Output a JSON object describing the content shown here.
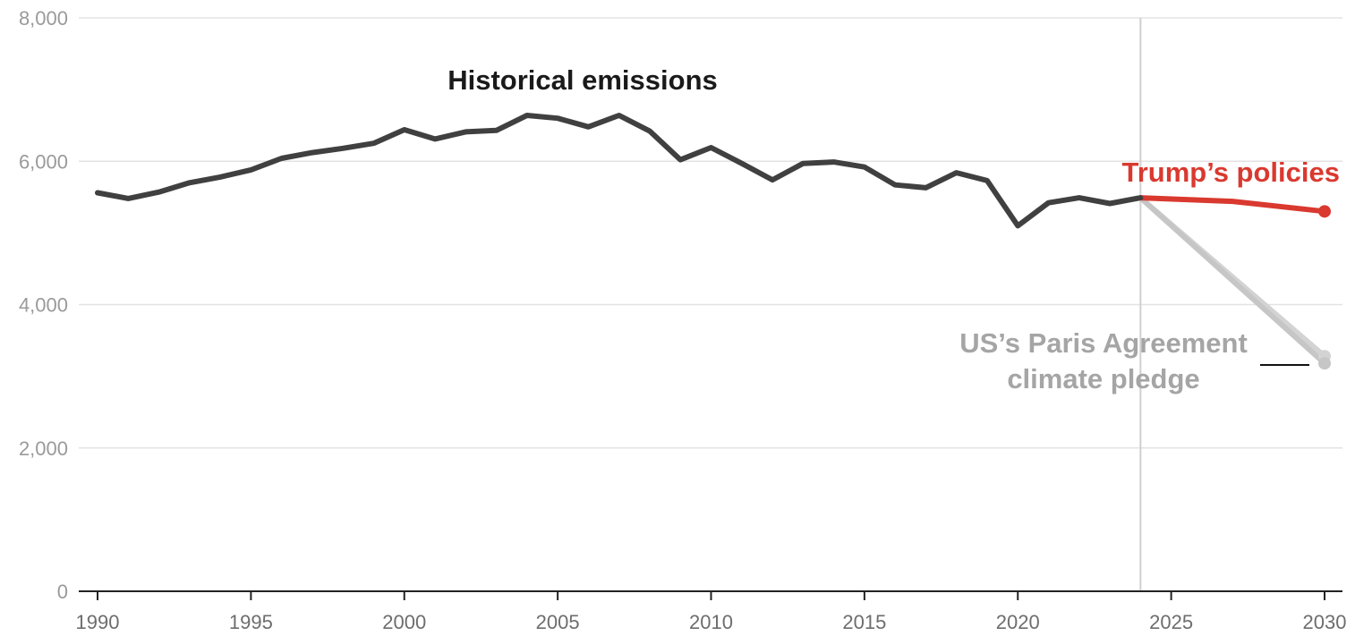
{
  "chart_data": {
    "type": "line",
    "title": "",
    "xlabel": "",
    "ylabel": "",
    "xlim": [
      1990,
      2030
    ],
    "ylim": [
      0,
      8000
    ],
    "grid": true,
    "x_ticks": [
      1990,
      1995,
      2000,
      2005,
      2010,
      2015,
      2020,
      2025,
      2030
    ],
    "y_ticks": [
      0,
      2000,
      4000,
      6000,
      8000
    ],
    "y_tick_labels": [
      "0",
      "2,000",
      "4,000",
      "6,000",
      "8,000"
    ],
    "divider_year": 2024,
    "series": [
      {
        "name": "Historical emissions",
        "color": "#404040",
        "x": [
          1990,
          1991,
          1992,
          1993,
          1994,
          1995,
          1996,
          1997,
          1998,
          1999,
          2000,
          2001,
          2002,
          2003,
          2004,
          2005,
          2006,
          2007,
          2008,
          2009,
          2010,
          2011,
          2012,
          2013,
          2014,
          2015,
          2016,
          2017,
          2018,
          2019,
          2020,
          2021,
          2022,
          2023,
          2024
        ],
        "y": [
          5560,
          5480,
          5570,
          5700,
          5780,
          5880,
          6040,
          6120,
          6180,
          6250,
          6440,
          6310,
          6410,
          6430,
          6640,
          6600,
          6480,
          6640,
          6420,
          6020,
          6190,
          5970,
          5740,
          5970,
          5990,
          5920,
          5670,
          5630,
          5840,
          5730,
          5100,
          5420,
          5490,
          5410,
          5490
        ]
      },
      {
        "name": "Trump’s policies",
        "color": "#d9392f",
        "x": [
          2024,
          2027,
          2030
        ],
        "y": [
          5490,
          5440,
          5300
        ]
      },
      {
        "name": "US’s Paris Agreement climate pledge",
        "color": "#c6c6c6",
        "x": [
          2024,
          2030
        ],
        "y": [
          5490,
          3180
        ]
      },
      {
        "name": "",
        "color": "#d3d3d3",
        "x": [
          2024,
          2030
        ],
        "y": [
          5490,
          3280
        ]
      }
    ],
    "labels": {
      "historical": "Historical emissions",
      "trump": "Trump’s policies",
      "paris_line1": "US’s Paris Agreement",
      "paris_line2": "climate pledge"
    }
  }
}
